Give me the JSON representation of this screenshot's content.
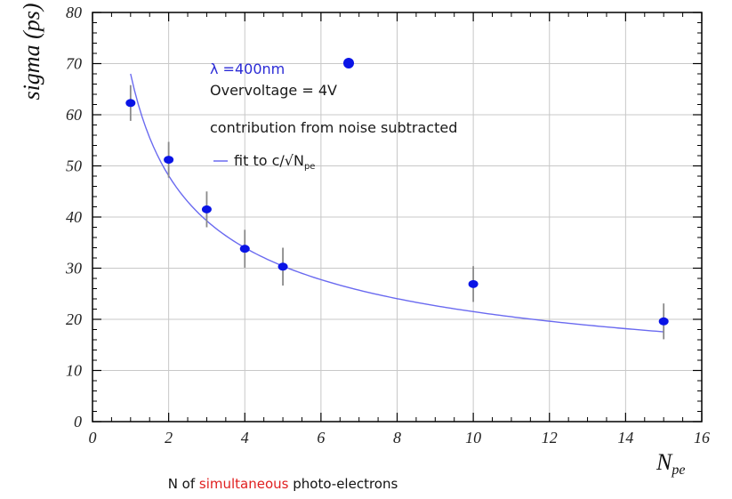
{
  "chart_data": {
    "type": "scatter",
    "xlabel": "N",
    "xlabel_sub": "pe",
    "ylabel": "sigma (ps)",
    "xlim": [
      0,
      16
    ],
    "ylim": [
      0,
      80
    ],
    "x_ticks": [
      0,
      2,
      4,
      6,
      8,
      10,
      12,
      14,
      16
    ],
    "y_ticks": [
      0,
      10,
      20,
      30,
      40,
      50,
      60,
      70,
      80
    ],
    "grid": true,
    "series": [
      {
        "marker_color": "#0a14e6",
        "error_color": "#8a8a8a",
        "points": [
          {
            "x": 1,
            "y": 62.3,
            "err": 3.5
          },
          {
            "x": 2,
            "y": 51.2,
            "err": 3.5
          },
          {
            "x": 3,
            "y": 41.5,
            "err": 3.5
          },
          {
            "x": 4,
            "y": 33.8,
            "err": 3.7
          },
          {
            "x": 5,
            "y": 30.3,
            "err": 3.7
          },
          {
            "x": 10,
            "y": 26.9,
            "err": 3.5
          },
          {
            "x": 15,
            "y": 19.6,
            "err": 3.5
          }
        ]
      }
    ],
    "fit": {
      "function": "c/sqrt(N_pe)",
      "c": 68,
      "x_range": [
        1,
        15
      ],
      "color": "#6a6af0"
    },
    "legend_marker_color": "#0a14e6"
  },
  "annotations": {
    "wavelength": "λ =400nm",
    "overvoltage": "Overvoltage = 4V",
    "noise": "contribution from noise subtracted",
    "fit_legend": "fit to c/√N",
    "fit_legend_sub": "pe"
  },
  "caption": {
    "part1": "N of ",
    "part2": "simultaneous",
    "part3": " photo-electrons"
  }
}
